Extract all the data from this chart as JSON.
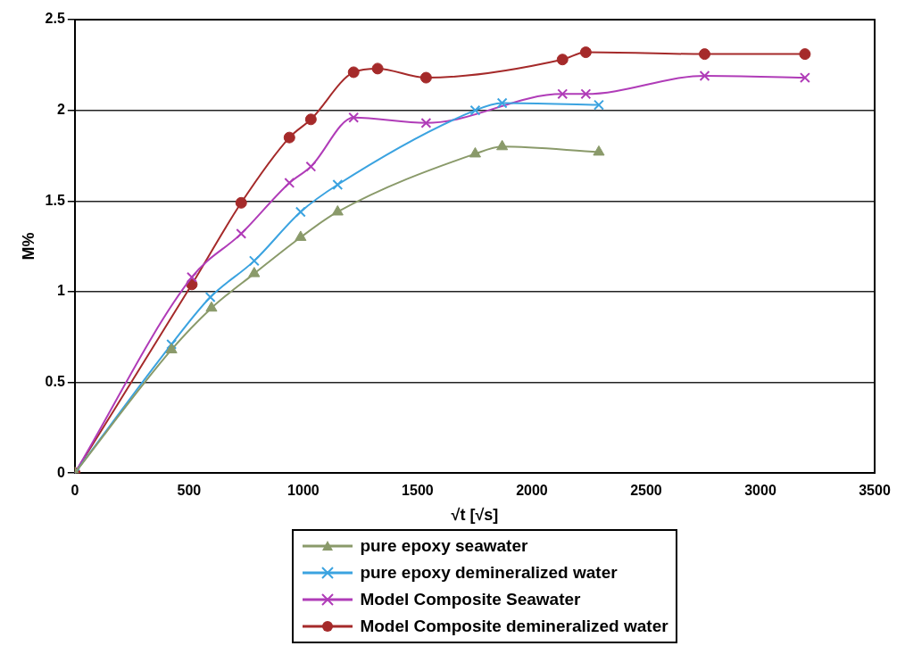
{
  "chart_data": {
    "type": "line",
    "xlabel": "√t [√s]",
    "ylabel": "M%",
    "xlim": [
      0,
      3500
    ],
    "xticks": [
      0,
      500,
      1000,
      1500,
      2000,
      2500,
      3000,
      3500
    ],
    "ylim": [
      0,
      2.5
    ],
    "yticks": [
      0,
      0.5,
      1,
      1.5,
      2,
      2.5
    ],
    "grid": "y",
    "legend": "bottom",
    "series": [
      {
        "name": "pure epoxy seawater",
        "color": "#8a9a6a",
        "marker": "triangle",
        "x": [
          0,
          423,
          598,
          785,
          988,
          1150,
          1752,
          1870,
          2293
        ],
        "values": [
          0,
          0.68,
          0.91,
          1.1,
          1.3,
          1.44,
          1.76,
          1.8,
          1.77
        ]
      },
      {
        "name": "pure epoxy demineralized water",
        "color": "#3ba3e0",
        "marker": "cross",
        "x": [
          0,
          423,
          593,
          785,
          988,
          1150,
          1752,
          1870,
          2293
        ],
        "values": [
          0,
          0.71,
          0.97,
          1.17,
          1.44,
          1.59,
          2.0,
          2.04,
          2.03
        ]
      },
      {
        "name": "Model Composite Seawater",
        "color": "#b03cb8",
        "marker": "cross",
        "x": [
          0,
          512,
          728,
          939,
          1033,
          1220,
          1537,
          2134,
          2236,
          2756,
          3195
        ],
        "values": [
          0,
          1.08,
          1.32,
          1.6,
          1.69,
          1.96,
          1.93,
          2.09,
          2.09,
          2.19,
          2.18
        ]
      },
      {
        "name": "Model Composite demineralized water",
        "color": "#a52a2a",
        "marker": "circle",
        "x": [
          0,
          512,
          728,
          939,
          1033,
          1220,
          1325,
          1537,
          2134,
          2236,
          2756,
          3195
        ],
        "values": [
          0,
          1.04,
          1.49,
          1.85,
          1.95,
          2.21,
          2.23,
          2.18,
          2.28,
          2.32,
          2.31,
          2.31
        ]
      }
    ]
  }
}
